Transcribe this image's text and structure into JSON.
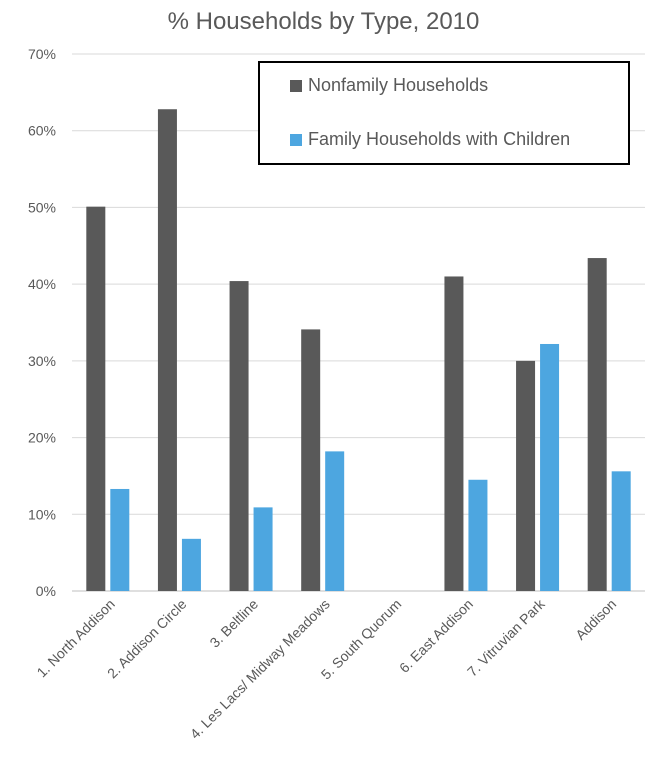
{
  "chart_data": {
    "type": "bar",
    "title": "% Households by Type, 2010",
    "categories": [
      "1. North Addison",
      "2. Addison Circle",
      "3. Beltline",
      "4. Les Lacs/ Midway Meadows",
      "5. South Quorum",
      "6. East Addison",
      "7. Vitruvian Park",
      "Addison"
    ],
    "series": [
      {
        "name": "Nonfamily Households",
        "color": "#595959",
        "values": [
          50.1,
          62.8,
          40.4,
          34.1,
          0,
          41.0,
          30.0,
          43.4
        ]
      },
      {
        "name": "Family Households with Children",
        "color": "#4da6e0",
        "values": [
          13.3,
          6.8,
          10.9,
          18.2,
          0,
          14.5,
          32.2,
          15.6
        ]
      }
    ],
    "yticks": [
      "0%",
      "10%",
      "20%",
      "30%",
      "40%",
      "50%",
      "60%",
      "70%"
    ],
    "ylim": [
      0,
      70
    ],
    "grid": true,
    "legend_position": "top-right"
  }
}
